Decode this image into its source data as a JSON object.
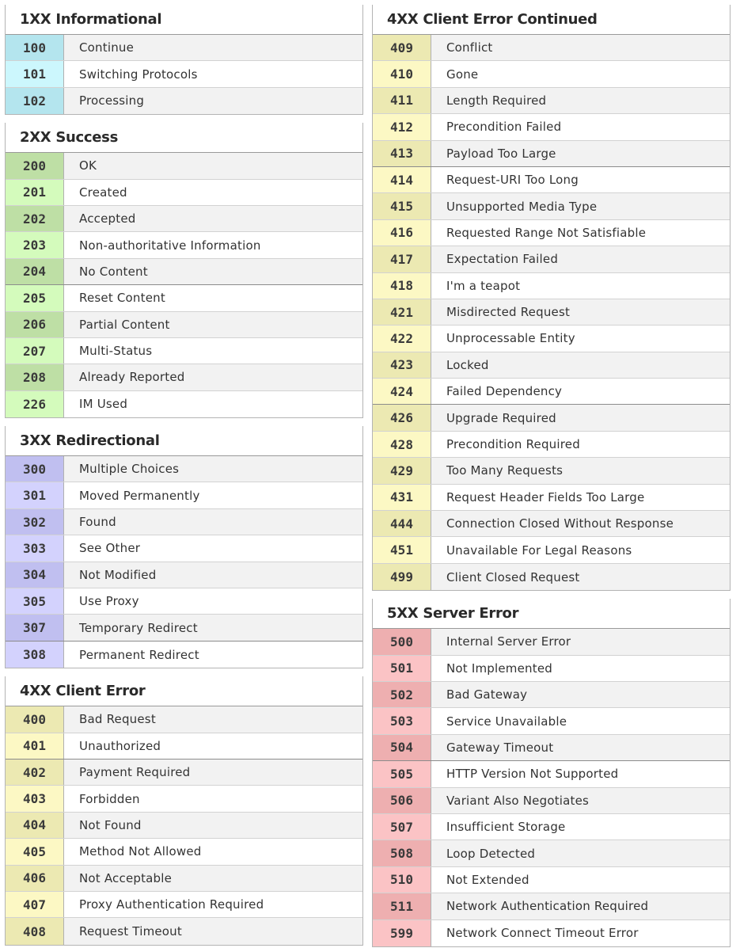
{
  "colors": {
    "1xx": {
      "dark": "#b4e5ee",
      "light": "#ccf7fd"
    },
    "2xx": {
      "dark": "#bedfa5",
      "light": "#d4fbbc"
    },
    "3xx": {
      "dark": "#c0bff0",
      "light": "#d3d2fd"
    },
    "4xx": {
      "dark": "#ece9b2",
      "light": "#fcf8c4"
    },
    "5xx": {
      "dark": "#eeafb0",
      "light": "#fbc3c5"
    }
  },
  "left_column": [
    {
      "title": "1XX Informational",
      "color_key": "1xx",
      "rows": [
        {
          "code": "100",
          "text": "Continue"
        },
        {
          "code": "101",
          "text": "Switching Protocols"
        },
        {
          "code": "102",
          "text": "Processing"
        }
      ]
    },
    {
      "title": "2XX Success",
      "color_key": "2xx",
      "rows": [
        {
          "code": "200",
          "text": "OK"
        },
        {
          "code": "201",
          "text": "Created"
        },
        {
          "code": "202",
          "text": "Accepted"
        },
        {
          "code": "203",
          "text": "Non-authoritative Information"
        },
        {
          "code": "204",
          "text": "No Content",
          "divider": true
        },
        {
          "code": "205",
          "text": "Reset Content"
        },
        {
          "code": "206",
          "text": "Partial Content"
        },
        {
          "code": "207",
          "text": "Multi-Status"
        },
        {
          "code": "208",
          "text": "Already Reported"
        },
        {
          "code": "226",
          "text": "IM Used"
        }
      ]
    },
    {
      "title": "3XX Redirectional",
      "color_key": "3xx",
      "rows": [
        {
          "code": "300",
          "text": "Multiple Choices"
        },
        {
          "code": "301",
          "text": "Moved Permanently"
        },
        {
          "code": "302",
          "text": "Found"
        },
        {
          "code": "303",
          "text": "See Other"
        },
        {
          "code": "304",
          "text": "Not Modified"
        },
        {
          "code": "305",
          "text": "Use Proxy"
        },
        {
          "code": "307",
          "text": "Temporary Redirect",
          "divider": true
        },
        {
          "code": "308",
          "text": "Permanent Redirect"
        }
      ]
    },
    {
      "title": "4XX Client Error",
      "color_key": "4xx",
      "rows": [
        {
          "code": "400",
          "text": "Bad Request"
        },
        {
          "code": "401",
          "text": "Unauthorized",
          "divider": true
        },
        {
          "code": "402",
          "text": "Payment Required"
        },
        {
          "code": "403",
          "text": "Forbidden"
        },
        {
          "code": "404",
          "text": "Not Found"
        },
        {
          "code": "405",
          "text": "Method Not Allowed"
        },
        {
          "code": "406",
          "text": "Not Acceptable"
        },
        {
          "code": "407",
          "text": "Proxy Authentication Required"
        },
        {
          "code": "408",
          "text": "Request Timeout"
        }
      ]
    }
  ],
  "right_column": [
    {
      "title": "4XX Client Error Continued",
      "color_key": "4xx",
      "rows": [
        {
          "code": "409",
          "text": "Conflict"
        },
        {
          "code": "410",
          "text": "Gone"
        },
        {
          "code": "411",
          "text": "Length Required"
        },
        {
          "code": "412",
          "text": "Precondition Failed"
        },
        {
          "code": "413",
          "text": "Payload Too Large",
          "divider": true
        },
        {
          "code": "414",
          "text": "Request-URI Too Long"
        },
        {
          "code": "415",
          "text": "Unsupported Media Type"
        },
        {
          "code": "416",
          "text": "Requested Range Not Satisfiable"
        },
        {
          "code": "417",
          "text": "Expectation Failed"
        },
        {
          "code": "418",
          "text": "I'm a teapot"
        },
        {
          "code": "421",
          "text": "Misdirected Request"
        },
        {
          "code": "422",
          "text": "Unprocessable Entity"
        },
        {
          "code": "423",
          "text": "Locked"
        },
        {
          "code": "424",
          "text": "Failed Dependency",
          "divider": true
        },
        {
          "code": "426",
          "text": "Upgrade Required"
        },
        {
          "code": "428",
          "text": "Precondition Required"
        },
        {
          "code": "429",
          "text": "Too Many Requests"
        },
        {
          "code": "431",
          "text": "Request Header Fields Too Large"
        },
        {
          "code": "444",
          "text": "Connection Closed Without Response"
        },
        {
          "code": "451",
          "text": "Unavailable For Legal Reasons"
        },
        {
          "code": "499",
          "text": "Client Closed Request"
        }
      ]
    },
    {
      "title": "5XX Server Error",
      "color_key": "5xx",
      "rows": [
        {
          "code": "500",
          "text": "Internal Server Error"
        },
        {
          "code": "501",
          "text": "Not Implemented"
        },
        {
          "code": "502",
          "text": "Bad Gateway"
        },
        {
          "code": "503",
          "text": "Service Unavailable"
        },
        {
          "code": "504",
          "text": "Gateway Timeout",
          "divider": true
        },
        {
          "code": "505",
          "text": "HTTP Version Not Supported"
        },
        {
          "code": "506",
          "text": "Variant Also Negotiates"
        },
        {
          "code": "507",
          "text": "Insufficient Storage"
        },
        {
          "code": "508",
          "text": "Loop Detected"
        },
        {
          "code": "510",
          "text": "Not Extended"
        },
        {
          "code": "511",
          "text": "Network Authentication Required"
        },
        {
          "code": "599",
          "text": "Network Connect Timeout Error"
        }
      ]
    }
  ]
}
